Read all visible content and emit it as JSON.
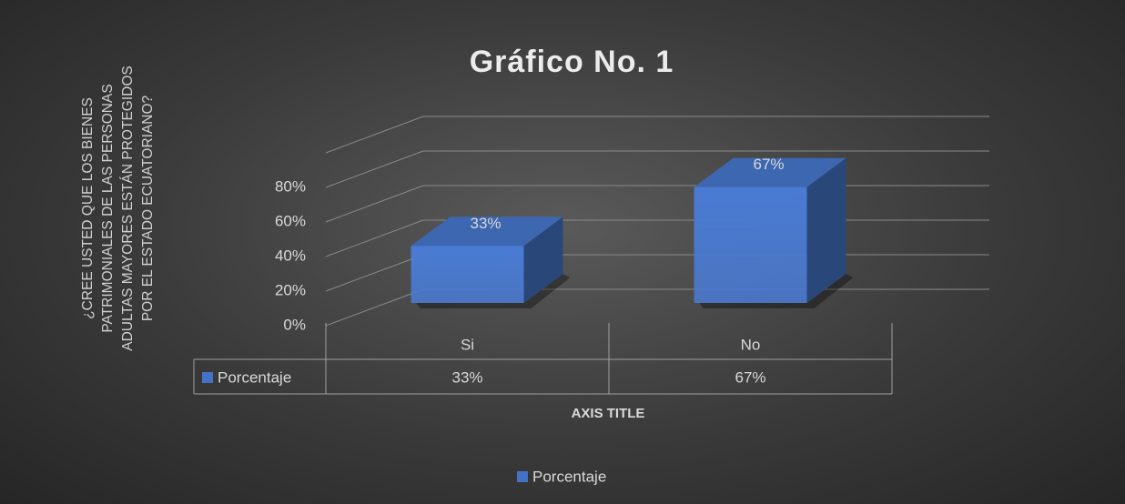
{
  "chart_data": {
    "type": "bar3d",
    "title": "Gráfico No. 1",
    "y_label": "¿CREE USTED QUE LOS BIENES PATRIMONIALES DE LAS PERSONAS ADULTAS MAYORES ESTÁN PROTEGIDOS POR EL ESTADO ECUATORIANO?",
    "x_label": "AXIS TITLE",
    "categories": [
      "Si",
      "No"
    ],
    "series": [
      {
        "name": "Porcentaje",
        "color": "#4472c4",
        "values": [
          33,
          67
        ],
        "value_labels": [
          "33%",
          "67%"
        ]
      }
    ],
    "ylim": [
      0,
      100
    ],
    "yticks": [
      {
        "value": 0,
        "label": "0%"
      },
      {
        "value": 20,
        "label": "20%"
      },
      {
        "value": 40,
        "label": "40%"
      },
      {
        "value": 60,
        "label": "60%"
      },
      {
        "value": 80,
        "label": "80%"
      }
    ],
    "grid": true,
    "legend": "bottom",
    "data_table": true
  }
}
